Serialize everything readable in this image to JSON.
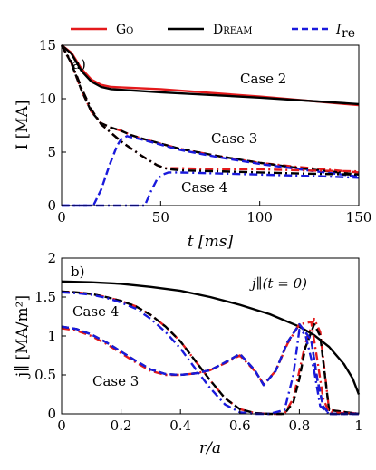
{
  "legend": {
    "entries": [
      {
        "label": "Go",
        "color": "#e41a1c",
        "style": "solid"
      },
      {
        "label": "Dream",
        "color": "#000000",
        "style": "solid"
      },
      {
        "label": "I",
        "sub": "re",
        "color": "#1a1adc",
        "style": "dashed"
      }
    ]
  },
  "colors": {
    "go": "#e41a1c",
    "dream": "#000000",
    "ire": "#1a1adc"
  },
  "chart_data": [
    {
      "type": "line",
      "panel_label": "a)",
      "xlabel": "t [ms]",
      "ylabel": "I [MA]",
      "xlim": [
        0,
        150
      ],
      "ylim": [
        0,
        15
      ],
      "xticks": [
        0,
        50,
        100,
        150
      ],
      "yticks": [
        0,
        5,
        10,
        15
      ],
      "annotations": [
        "Case 2",
        "Case 3",
        "Case 4"
      ],
      "series": [
        {
          "case": "Case 2",
          "code": "Go",
          "color": "#e41a1c",
          "dash": "solid",
          "x": [
            0,
            5,
            10,
            15,
            20,
            25,
            50,
            100,
            150
          ],
          "y": [
            15,
            14.3,
            12.8,
            11.8,
            11.3,
            11.1,
            10.9,
            10.2,
            9.4
          ]
        },
        {
          "case": "Case 2",
          "code": "Dream",
          "color": "#000000",
          "dash": "solid",
          "x": [
            0,
            5,
            10,
            15,
            20,
            25,
            50,
            100,
            150
          ],
          "y": [
            15,
            14.2,
            12.6,
            11.6,
            11.1,
            10.9,
            10.6,
            10.1,
            9.5
          ]
        },
        {
          "case": "Case 3",
          "code": "Go",
          "color": "#e41a1c",
          "dash": "dashdot",
          "x": [
            0,
            5,
            10,
            15,
            20,
            25,
            30,
            35,
            40,
            50,
            60,
            80,
            100,
            120,
            150
          ],
          "y": [
            15,
            13.3,
            10.8,
            8.8,
            7.7,
            7.3,
            7.0,
            6.6,
            6.3,
            5.8,
            5.3,
            4.6,
            4.0,
            3.6,
            3.1
          ]
        },
        {
          "case": "Case 3",
          "code": "Dream",
          "color": "#000000",
          "dash": "dashed",
          "x": [
            0,
            5,
            10,
            15,
            20,
            25,
            30,
            35,
            40,
            50,
            60,
            80,
            100,
            120,
            150
          ],
          "y": [
            15,
            13.3,
            10.8,
            8.8,
            7.7,
            7.3,
            7.0,
            6.6,
            6.3,
            5.8,
            5.3,
            4.6,
            4.0,
            3.5,
            2.9
          ]
        },
        {
          "case": "Case 3",
          "code": "Ire",
          "color": "#1a1adc",
          "dash": "dashed",
          "x": [
            0,
            16,
            20,
            24,
            28,
            30,
            33,
            35,
            40,
            50,
            60,
            80,
            100,
            120,
            150
          ],
          "y": [
            0,
            0,
            1.5,
            3.7,
            5.6,
            6.2,
            6.5,
            6.4,
            6.2,
            5.7,
            5.2,
            4.5,
            3.9,
            3.4,
            2.7
          ]
        },
        {
          "case": "Case 4",
          "code": "Go",
          "color": "#e41a1c",
          "dash": "dashdot",
          "x": [
            0,
            5,
            10,
            15,
            20,
            30,
            40,
            48,
            52,
            55,
            60,
            80,
            100,
            120,
            150
          ],
          "y": [
            15,
            13.4,
            11.0,
            9.0,
            7.6,
            6.0,
            4.7,
            3.8,
            3.5,
            3.5,
            3.5,
            3.4,
            3.4,
            3.3,
            3.2
          ]
        },
        {
          "case": "Case 4",
          "code": "Dream",
          "color": "#000000",
          "dash": "dashdot",
          "x": [
            0,
            5,
            10,
            15,
            20,
            30,
            40,
            48,
            52,
            55,
            60,
            80,
            100,
            120,
            150
          ],
          "y": [
            15,
            13.4,
            11.0,
            9.0,
            7.6,
            6.0,
            4.7,
            3.8,
            3.5,
            3.4,
            3.3,
            3.2,
            3.1,
            3.0,
            2.9
          ]
        },
        {
          "case": "Case 4",
          "code": "Ire",
          "color": "#1a1adc",
          "dash": "dashdot",
          "x": [
            0,
            42,
            45,
            48,
            51,
            54,
            58,
            70,
            90,
            110,
            130,
            150
          ],
          "y": [
            0,
            0,
            1.3,
            2.4,
            2.9,
            3.1,
            3.1,
            3.05,
            2.95,
            2.85,
            2.75,
            2.6
          ]
        }
      ]
    },
    {
      "type": "line",
      "panel_label": "b)",
      "xlabel": "r/a",
      "ylabel": "j∥ [MA/m²]",
      "xlim": [
        0,
        1
      ],
      "ylim": [
        0,
        2
      ],
      "xticks": [
        0,
        0.2,
        0.4,
        0.6,
        0.8,
        1
      ],
      "xticklabels": [
        "0",
        "0.2",
        "0.4",
        "0.6",
        "0.8",
        "1"
      ],
      "yticks": [
        0,
        0.5,
        1,
        1.5,
        2
      ],
      "yticklabels": [
        "0",
        "0.5",
        "1",
        "1.5",
        "2"
      ],
      "annotations": [
        "j∥(t = 0)",
        "Case 4",
        "Case 3"
      ],
      "series": [
        {
          "case": "t = 0",
          "code": "Dream",
          "color": "#000000",
          "dash": "solid",
          "x": [
            0,
            0.1,
            0.2,
            0.3,
            0.4,
            0.5,
            0.6,
            0.7,
            0.8,
            0.85,
            0.9,
            0.95,
            0.98,
            1.0
          ],
          "y": [
            1.7,
            1.69,
            1.67,
            1.63,
            1.58,
            1.5,
            1.4,
            1.28,
            1.12,
            1.01,
            0.86,
            0.64,
            0.45,
            0.25
          ]
        },
        {
          "case": "Case 4",
          "code": "Go",
          "color": "#e41a1c",
          "dash": "dashdot",
          "x": [
            0,
            0.05,
            0.1,
            0.15,
            0.2,
            0.25,
            0.3,
            0.35,
            0.4,
            0.45,
            0.5,
            0.55,
            0.6,
            0.65,
            0.7,
            0.75,
            0.78,
            0.8,
            0.82,
            0.85,
            0.87,
            0.9,
            1.0
          ],
          "y": [
            1.57,
            1.56,
            1.54,
            1.5,
            1.45,
            1.38,
            1.27,
            1.12,
            0.93,
            0.68,
            0.43,
            0.2,
            0.06,
            0.01,
            0.0,
            0.0,
            0.2,
            0.55,
            0.9,
            1.22,
            1.05,
            0.05,
            0.0
          ]
        },
        {
          "case": "Case 4",
          "code": "Dream",
          "color": "#000000",
          "dash": "dashed",
          "x": [
            0,
            0.05,
            0.1,
            0.15,
            0.2,
            0.25,
            0.3,
            0.35,
            0.4,
            0.45,
            0.5,
            0.55,
            0.6,
            0.65,
            0.7,
            0.75,
            0.78,
            0.8,
            0.82,
            0.85,
            0.87,
            0.9,
            1.0
          ],
          "y": [
            1.57,
            1.56,
            1.54,
            1.5,
            1.45,
            1.38,
            1.27,
            1.12,
            0.93,
            0.68,
            0.43,
            0.2,
            0.06,
            0.01,
            0.0,
            0.0,
            0.15,
            0.45,
            0.85,
            1.15,
            1.0,
            0.05,
            0.0
          ]
        },
        {
          "case": "Case 4",
          "code": "Ire",
          "color": "#1a1adc",
          "dash": "dashdot",
          "x": [
            0,
            0.05,
            0.1,
            0.15,
            0.2,
            0.25,
            0.3,
            0.35,
            0.4,
            0.45,
            0.5,
            0.55,
            0.6,
            0.65,
            0.7,
            0.75,
            0.78,
            0.8,
            0.82,
            0.85,
            0.87,
            0.9,
            1.0
          ],
          "y": [
            1.56,
            1.55,
            1.53,
            1.49,
            1.43,
            1.35,
            1.22,
            1.05,
            0.84,
            0.58,
            0.33,
            0.12,
            0.02,
            0.0,
            0.0,
            0.05,
            0.5,
            1.08,
            1.02,
            0.55,
            0.1,
            0.0,
            0.0
          ]
        },
        {
          "case": "Case 3",
          "code": "Go",
          "color": "#e41a1c",
          "dash": "dashdot",
          "x": [
            0,
            0.05,
            0.1,
            0.15,
            0.2,
            0.25,
            0.3,
            0.35,
            0.4,
            0.45,
            0.5,
            0.55,
            0.6,
            0.65,
            0.68,
            0.72,
            0.76,
            0.8,
            0.84,
            0.86,
            0.88,
            0.9,
            1.0
          ],
          "y": [
            1.1,
            1.07,
            1.0,
            0.9,
            0.78,
            0.66,
            0.55,
            0.5,
            0.5,
            0.52,
            0.56,
            0.65,
            0.75,
            0.55,
            0.38,
            0.55,
            0.9,
            1.15,
            1.18,
            0.7,
            0.2,
            0.02,
            0.0
          ]
        },
        {
          "case": "Case 3",
          "code": "Dream",
          "color": "#000000",
          "dash": "dashed",
          "x": [
            0,
            0.05,
            0.1,
            0.15,
            0.2,
            0.25,
            0.3,
            0.35,
            0.4,
            0.45,
            0.5,
            0.55,
            0.6,
            0.65,
            0.68,
            0.72,
            0.76,
            0.8,
            0.84,
            0.86,
            0.88,
            0.9,
            1.0
          ],
          "y": [
            1.12,
            1.09,
            1.02,
            0.92,
            0.8,
            0.68,
            0.57,
            0.51,
            0.5,
            0.52,
            0.56,
            0.66,
            0.77,
            0.56,
            0.37,
            0.55,
            0.92,
            1.15,
            0.95,
            0.45,
            0.1,
            0.0,
            0.0
          ]
        },
        {
          "case": "Case 3",
          "code": "Ire",
          "color": "#1a1adc",
          "dash": "dashed",
          "x": [
            0,
            0.05,
            0.1,
            0.15,
            0.2,
            0.25,
            0.3,
            0.35,
            0.4,
            0.45,
            0.5,
            0.55,
            0.6,
            0.65,
            0.68,
            0.72,
            0.76,
            0.8,
            0.84,
            0.86,
            0.88,
            0.9,
            1.0
          ],
          "y": [
            1.12,
            1.09,
            1.02,
            0.92,
            0.8,
            0.68,
            0.57,
            0.51,
            0.5,
            0.52,
            0.56,
            0.66,
            0.77,
            0.56,
            0.37,
            0.55,
            0.92,
            1.15,
            0.95,
            0.45,
            0.1,
            0.0,
            0.0
          ]
        }
      ]
    }
  ]
}
